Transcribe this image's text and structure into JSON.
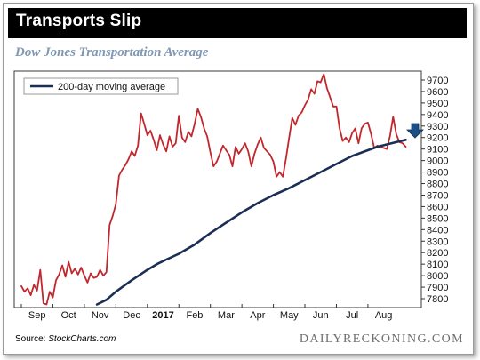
{
  "header": {
    "title": "Transports Slip"
  },
  "figure": {
    "source_prefix": "Source: ",
    "source_name": "StockCharts.com",
    "brand": "DAILYRECKONING.COM"
  },
  "chart_data": {
    "type": "line",
    "title": "Dow Jones Transportation Average",
    "xlabel": "",
    "ylabel": "",
    "ylim": [
      7700,
      9800
    ],
    "xlim": [
      0,
      12.3
    ],
    "grid": false,
    "legend_position": "top-left",
    "x_ticks": [
      {
        "label": "Sep",
        "x": 0.5
      },
      {
        "label": "Oct",
        "x": 1.5
      },
      {
        "label": "Nov",
        "x": 2.5
      },
      {
        "label": "Dec",
        "x": 3.5
      },
      {
        "label": "2017",
        "x": 4.5,
        "bold": true
      },
      {
        "label": "Feb",
        "x": 5.5
      },
      {
        "label": "Mar",
        "x": 6.5
      },
      {
        "label": "Apr",
        "x": 7.5
      },
      {
        "label": "May",
        "x": 8.5
      },
      {
        "label": "Jun",
        "x": 9.5
      },
      {
        "label": "Jul",
        "x": 10.5
      },
      {
        "label": "Aug",
        "x": 11.5
      }
    ],
    "y_ticks": [
      7800,
      7900,
      8000,
      8100,
      8200,
      8300,
      8400,
      8500,
      8600,
      8700,
      8800,
      8900,
      9000,
      9100,
      9200,
      9300,
      9400,
      9500,
      9600,
      9700
    ],
    "series": [
      {
        "name": "Dow Jones Transportation Average",
        "color": "#c1272d",
        "x": [
          0.0,
          0.1,
          0.2,
          0.3,
          0.4,
          0.5,
          0.6,
          0.7,
          0.8,
          0.9,
          1.0,
          1.1,
          1.2,
          1.3,
          1.4,
          1.5,
          1.6,
          1.7,
          1.8,
          1.9,
          2.0,
          2.1,
          2.2,
          2.3,
          2.4,
          2.5,
          2.6,
          2.7,
          2.8,
          2.9,
          3.0,
          3.1,
          3.2,
          3.3,
          3.4,
          3.5,
          3.6,
          3.7,
          3.8,
          3.9,
          4.0,
          4.1,
          4.2,
          4.3,
          4.4,
          4.5,
          4.6,
          4.7,
          4.8,
          4.9,
          5.0,
          5.1,
          5.2,
          5.3,
          5.4,
          5.5,
          5.6,
          5.7,
          5.8,
          5.9,
          6.0,
          6.1,
          6.2,
          6.3,
          6.4,
          6.5,
          6.6,
          6.7,
          6.8,
          6.9,
          7.0,
          7.1,
          7.2,
          7.3,
          7.4,
          7.5,
          7.6,
          7.7,
          7.8,
          7.9,
          8.0,
          8.1,
          8.2,
          8.3,
          8.4,
          8.5,
          8.6,
          8.7,
          8.8,
          8.9,
          9.0,
          9.1,
          9.2,
          9.3,
          9.4,
          9.5,
          9.6,
          9.7,
          9.8,
          9.9,
          10.0,
          10.1,
          10.2,
          10.3,
          10.4,
          10.5,
          10.6,
          10.7,
          10.8,
          10.9,
          11.0,
          11.1,
          11.2,
          11.3,
          11.4,
          11.5,
          11.6,
          11.7,
          11.8,
          11.9,
          12.0,
          12.1,
          12.2
        ],
        "values": [
          7910,
          7860,
          7890,
          7830,
          7920,
          7870,
          8050,
          7760,
          7750,
          7860,
          7810,
          7960,
          8010,
          8090,
          7990,
          8120,
          8020,
          8060,
          8010,
          8070,
          8000,
          7940,
          8020,
          7980,
          7990,
          8050,
          8000,
          8030,
          8440,
          8520,
          8620,
          8870,
          8920,
          8960,
          9010,
          9080,
          9040,
          9130,
          9410,
          9320,
          9220,
          9260,
          9180,
          9090,
          9220,
          9140,
          9080,
          9210,
          9120,
          9150,
          9390,
          9200,
          9160,
          9250,
          9210,
          9320,
          9450,
          9380,
          9280,
          9210,
          9070,
          8950,
          8990,
          9060,
          9130,
          9090,
          9050,
          8950,
          9120,
          9060,
          9100,
          9150,
          9080,
          8950,
          9060,
          9140,
          9200,
          9110,
          9080,
          9050,
          8990,
          8860,
          8900,
          8860,
          9020,
          9200,
          9370,
          9310,
          9390,
          9420,
          9480,
          9530,
          9620,
          9580,
          9690,
          9680,
          9750,
          9630,
          9550,
          9470,
          9470,
          9280,
          9170,
          9200,
          9160,
          9240,
          9280,
          9150,
          9280,
          9320,
          9330,
          9230,
          9110,
          9130,
          9120,
          9110,
          9100,
          9210,
          9380,
          9230,
          9160,
          9150,
          9120
        ],
        "note_x": "months from Sep 1 2016"
      },
      {
        "name": "200-day moving average",
        "color": "#1b2f56",
        "x": [
          2.4,
          2.7,
          3.0,
          3.5,
          4.0,
          4.3,
          4.6,
          5.0,
          5.5,
          6.0,
          6.5,
          7.0,
          7.5,
          8.0,
          8.5,
          9.0,
          9.5,
          10.0,
          10.5,
          11.0,
          11.3,
          11.6,
          11.9,
          12.2
        ],
        "values": [
          7750,
          7790,
          7860,
          7960,
          8050,
          8100,
          8140,
          8190,
          8270,
          8370,
          8460,
          8550,
          8630,
          8700,
          8760,
          8830,
          8900,
          8970,
          9040,
          9090,
          9120,
          9140,
          9160,
          9180
        ]
      }
    ]
  }
}
